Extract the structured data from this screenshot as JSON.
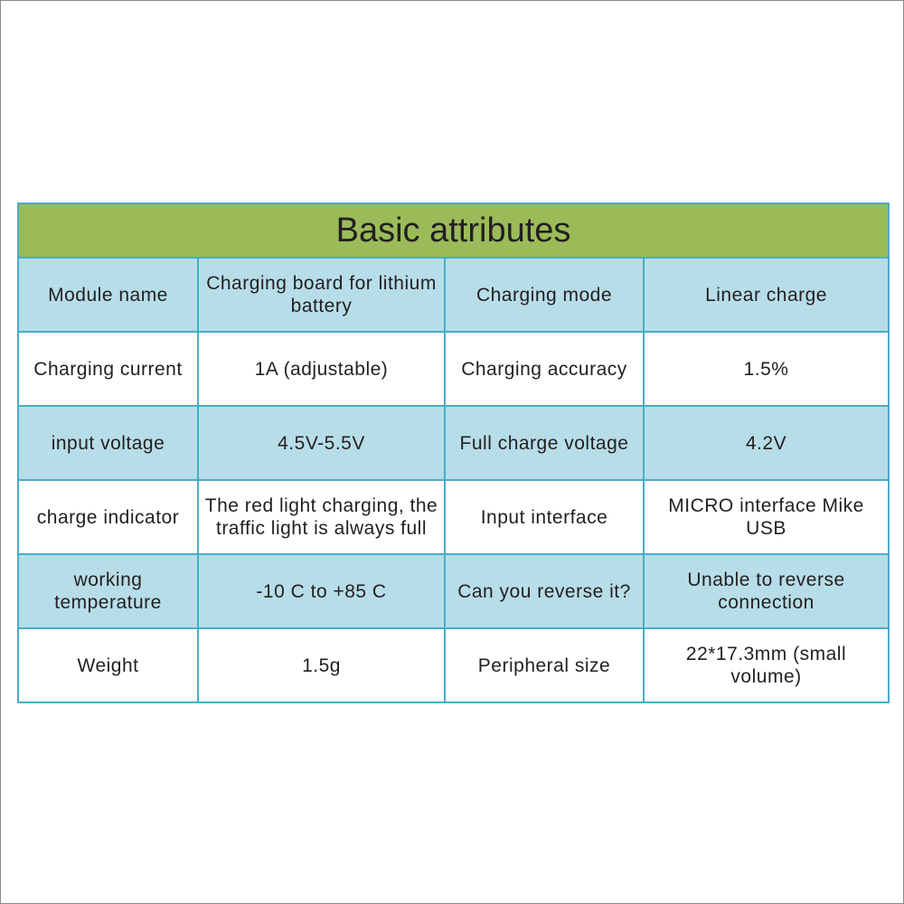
{
  "title": "Basic attributes",
  "colors": {
    "header": "#9bbb59",
    "shaded_row": "#b7dde8",
    "border": "#4bacc6"
  },
  "rows": [
    [
      "Module name",
      "Charging board for lithium battery",
      "Charging mode",
      "Linear charge"
    ],
    [
      "Charging current",
      "1A (adjustable)",
      "Charging accuracy",
      "1.5%"
    ],
    [
      "input voltage",
      "4.5V-5.5V",
      "Full charge voltage",
      "4.2V"
    ],
    [
      "charge indicator",
      "The red light charging, the traffic light is always full",
      "Input interface",
      "MICRO interface Mike USB"
    ],
    [
      "working temperature",
      "-10 C to +85 C",
      "Can you reverse it?",
      "Unable to reverse connection"
    ],
    [
      "Weight",
      "1.5g",
      "Peripheral size",
      "22*17.3mm (small volume)"
    ]
  ]
}
